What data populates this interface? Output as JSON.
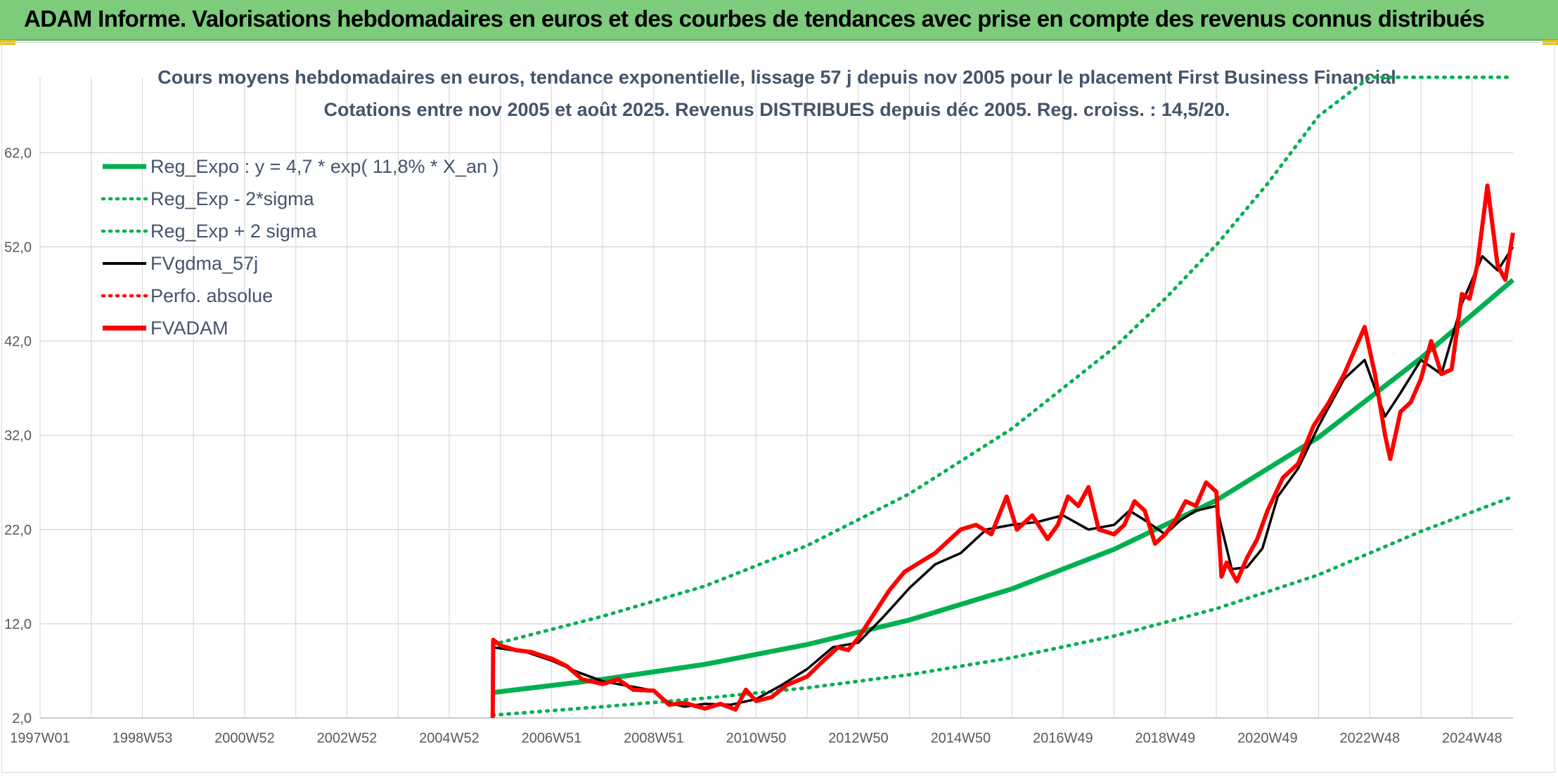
{
  "header": {
    "title": "ADAM Informe. Valorisations hebdomadaires en euros et des courbes de tendances avec prise en compte des revenus connus distribués"
  },
  "colors": {
    "banner": "#7ccc7c",
    "reg": "#00b050",
    "gdma": "#000000",
    "fvadam": "#ff0000",
    "grid": "#d9d9d9",
    "title": "#44546a"
  },
  "chart_data": {
    "type": "line",
    "title": [
      "Cours moyens hebdomadaires en euros, tendance exponentielle, lissage 57 j depuis nov 2005 pour le placement First Business Financial",
      "Cotations entre nov 2005 et août 2025. Revenus DISTRIBUES depuis déc 2005. Reg. croiss. : 14,5/20."
    ],
    "x_tick_labels": [
      "1997W01",
      "1998W53",
      "2000W52",
      "2002W52",
      "2004W52",
      "2006W51",
      "2008W51",
      "2010W50",
      "2012W50",
      "2014W50",
      "2016W49",
      "2018W49",
      "2020W49",
      "2022W48",
      "2024W48"
    ],
    "x_tick_years": [
      1997.0,
      1999.0,
      2001.0,
      2003.0,
      2005.0,
      2007.0,
      2009.0,
      2011.0,
      2013.0,
      2015.0,
      2017.0,
      2019.0,
      2021.0,
      2023.0,
      2025.0
    ],
    "x_range": [
      1997.0,
      2025.8
    ],
    "y_ticks": [
      "2,0",
      "12,0",
      "22,0",
      "32,0",
      "42,0",
      "52,0",
      "62,0"
    ],
    "y_tick_values": [
      2,
      12,
      22,
      32,
      42,
      52,
      62
    ],
    "ylim": [
      2,
      70
    ],
    "grid": true,
    "legend_position": "top-left",
    "legend": [
      {
        "label": "Reg_Expo : y = 4,7 * exp( 11,8% *  X_an )",
        "color": "#00b050",
        "style": "solid"
      },
      {
        "label": "Reg_Exp - 2*sigma",
        "color": "#00b050",
        "style": "dotted"
      },
      {
        "label": "Reg_Exp + 2 sigma",
        "color": "#00b050",
        "style": "dotted"
      },
      {
        "label": "FVgdma_57j",
        "color": "#000000",
        "style": "solid-thin"
      },
      {
        "label": "Perfo. absolue",
        "color": "#ff0000",
        "style": "dotted"
      },
      {
        "label": "FVADAM",
        "color": "#ff0000",
        "style": "solid"
      }
    ],
    "series": [
      {
        "name": "Reg_Expo : y = 4,7 * exp( 11,8% *  X_an )",
        "color": "#00b050",
        "x": [
          2005.85,
          2008.0,
          2010.0,
          2012.0,
          2014.0,
          2016.0,
          2018.0,
          2020.0,
          2022.0,
          2024.0,
          2025.8
        ],
        "values": [
          4.7,
          6.1,
          7.7,
          9.8,
          12.4,
          15.7,
          19.9,
          25.1,
          31.8,
          40.2,
          48.5
        ]
      },
      {
        "name": "Reg_Exp - 2*sigma",
        "color": "#00b050",
        "x": [
          2005.85,
          2008.0,
          2010.0,
          2012.0,
          2014.0,
          2016.0,
          2018.0,
          2020.0,
          2022.0,
          2024.0,
          2025.8
        ],
        "values": [
          2.3,
          3.2,
          4.1,
          5.2,
          6.6,
          8.4,
          10.7,
          13.6,
          17.2,
          21.8,
          25.5
        ]
      },
      {
        "name": "Reg_Exp + 2 sigma",
        "color": "#00b050",
        "x": [
          2005.85,
          2008.0,
          2010.0,
          2012.0,
          2014.0,
          2016.0,
          2018.0,
          2019.0,
          2020.0,
          2021.0,
          2022.0,
          2023.0,
          2025.8
        ],
        "values": [
          9.8,
          12.8,
          16.0,
          20.3,
          25.8,
          32.7,
          41.3,
          46.5,
          52.2,
          58.7,
          65.9,
          70.0,
          70.0
        ]
      },
      {
        "name": "FVgdma_57j",
        "color": "#000000",
        "x": [
          2005.85,
          2006.5,
          2007.0,
          2007.5,
          2008.0,
          2008.5,
          2009.0,
          2009.3,
          2009.6,
          2010.0,
          2010.5,
          2011.0,
          2011.5,
          2012.0,
          2012.5,
          2013.0,
          2013.5,
          2014.0,
          2014.5,
          2015.0,
          2015.5,
          2016.0,
          2016.5,
          2017.0,
          2017.5,
          2018.0,
          2018.3,
          2018.6,
          2019.0,
          2019.3,
          2019.6,
          2020.0,
          2020.3,
          2020.6,
          2020.9,
          2021.2,
          2021.6,
          2022.0,
          2022.5,
          2022.9,
          2023.3,
          2023.6,
          2024.0,
          2024.4,
          2024.8,
          2025.2,
          2025.5,
          2025.8
        ],
        "values": [
          9.5,
          9.0,
          8.1,
          6.9,
          5.9,
          5.4,
          4.9,
          3.6,
          3.2,
          3.5,
          3.4,
          4.0,
          5.5,
          7.2,
          9.5,
          10.0,
          12.8,
          15.8,
          18.3,
          19.5,
          22.0,
          22.5,
          22.8,
          23.5,
          22.0,
          22.5,
          24.0,
          23.0,
          21.5,
          23.0,
          24.0,
          24.5,
          17.8,
          18.0,
          20.0,
          25.5,
          28.5,
          33.0,
          38.0,
          40.0,
          34.0,
          36.5,
          40.0,
          38.5,
          46.0,
          51.0,
          49.5,
          52.0
        ]
      },
      {
        "name": "FVADAM",
        "color": "#ff0000",
        "x": [
          2005.85,
          2005.86,
          2006.0,
          2006.3,
          2006.6,
          2007.0,
          2007.3,
          2007.6,
          2008.0,
          2008.3,
          2008.6,
          2009.0,
          2009.3,
          2009.6,
          2010.0,
          2010.3,
          2010.6,
          2010.8,
          2011.0,
          2011.3,
          2011.6,
          2012.0,
          2012.3,
          2012.6,
          2012.8,
          2013.0,
          2013.3,
          2013.6,
          2013.9,
          2014.2,
          2014.5,
          2014.8,
          2015.0,
          2015.3,
          2015.6,
          2015.9,
          2016.1,
          2016.4,
          2016.7,
          2016.9,
          2017.1,
          2017.3,
          2017.5,
          2017.7,
          2018.0,
          2018.2,
          2018.4,
          2018.6,
          2018.8,
          2019.0,
          2019.2,
          2019.4,
          2019.6,
          2019.8,
          2020.0,
          2020.1,
          2020.2,
          2020.4,
          2020.6,
          2020.8,
          2021.0,
          2021.3,
          2021.6,
          2021.9,
          2022.2,
          2022.5,
          2022.7,
          2022.9,
          2023.1,
          2023.3,
          2023.4,
          2023.6,
          2023.8,
          2024.0,
          2024.2,
          2024.4,
          2024.6,
          2024.8,
          2024.95,
          2025.1,
          2025.3,
          2025.5,
          2025.65,
          2025.8
        ],
        "values": [
          0.0,
          10.3,
          9.7,
          9.2,
          9.0,
          8.3,
          7.5,
          6.1,
          5.6,
          6.1,
          5.0,
          4.9,
          3.4,
          3.6,
          3.0,
          3.5,
          2.9,
          5.0,
          3.8,
          4.2,
          5.5,
          6.4,
          8.0,
          9.5,
          9.2,
          10.5,
          13.0,
          15.5,
          17.5,
          18.5,
          19.5,
          21.0,
          22.0,
          22.5,
          21.5,
          25.5,
          22.0,
          23.5,
          21.0,
          22.5,
          25.5,
          24.5,
          26.5,
          22.0,
          21.5,
          22.5,
          25.0,
          24.0,
          20.5,
          21.5,
          23.0,
          25.0,
          24.5,
          27.0,
          26.0,
          17.0,
          18.5,
          16.5,
          19.0,
          21.0,
          24.0,
          27.5,
          29.0,
          33.0,
          35.5,
          38.5,
          41.0,
          43.5,
          38.5,
          32.0,
          29.5,
          34.5,
          35.5,
          38.0,
          42.0,
          38.5,
          39.0,
          47.0,
          46.5,
          50.0,
          58.5,
          50.0,
          48.5,
          53.5
        ]
      }
    ]
  }
}
